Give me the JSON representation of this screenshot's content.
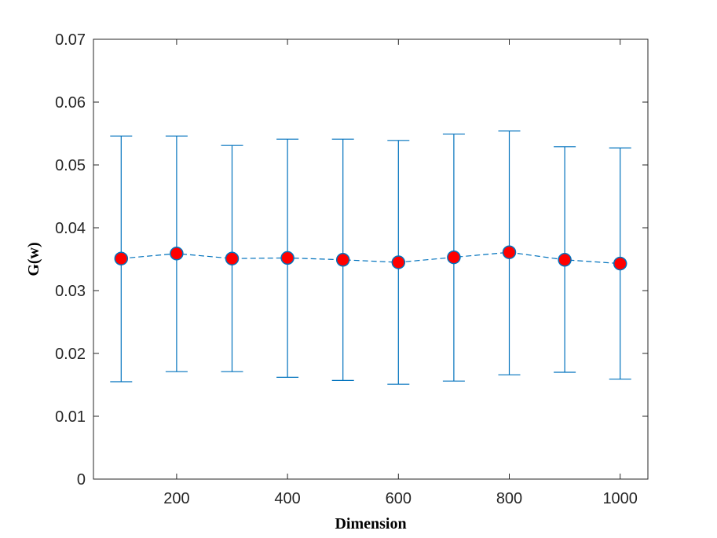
{
  "chart_data": {
    "type": "scatter",
    "title": "",
    "xlabel": "Dimension",
    "ylabel": "G(w)",
    "xlim": [
      50,
      1050
    ],
    "ylim": [
      0,
      0.07
    ],
    "xticks": [
      200,
      400,
      600,
      800,
      1000
    ],
    "xtick_labels": [
      "200",
      "400",
      "600",
      "800",
      "1000"
    ],
    "yticks": [
      0,
      0.01,
      0.02,
      0.03,
      0.04,
      0.05,
      0.06,
      0.07
    ],
    "ytick_labels": [
      "0",
      "0.01",
      "0.02",
      "0.03",
      "0.04",
      "0.05",
      "0.06",
      "0.07"
    ],
    "grid": false,
    "legend": "none",
    "series": [
      {
        "x": [
          100,
          200,
          300,
          400,
          500,
          600,
          700,
          800,
          900,
          1000
        ],
        "y": [
          0.0351,
          0.0359,
          0.0351,
          0.0352,
          0.0349,
          0.0345,
          0.0353,
          0.0361,
          0.0349,
          0.0343
        ],
        "lower": [
          0.0155,
          0.0171,
          0.0171,
          0.0162,
          0.0157,
          0.0151,
          0.0156,
          0.0166,
          0.017,
          0.0159
        ],
        "upper": [
          0.0546,
          0.0546,
          0.0531,
          0.0541,
          0.0541,
          0.0539,
          0.0549,
          0.0554,
          0.0529,
          0.0527
        ],
        "line_style": "dashed",
        "line_color": "#0072BD",
        "marker_face": "#FF0000",
        "marker_edge": "#0072BD"
      }
    ]
  }
}
